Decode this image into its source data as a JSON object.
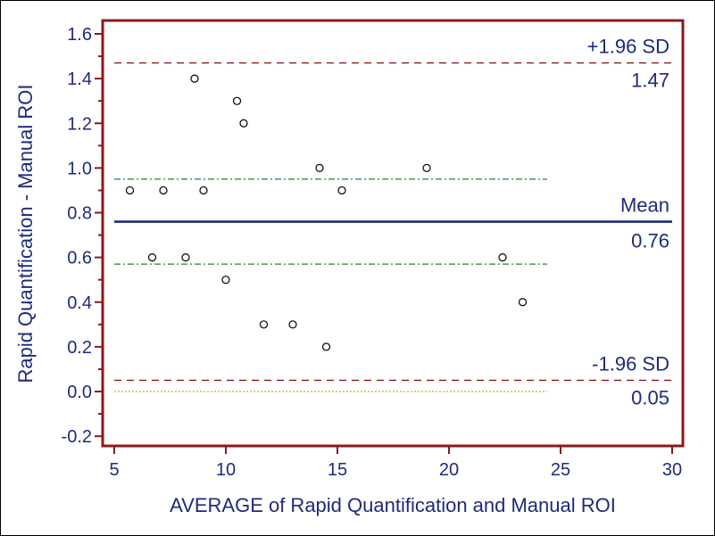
{
  "chart_data": {
    "type": "scatter",
    "subtype": "bland-altman",
    "xlabel": "AVERAGE of Rapid Quantification and Manual ROI",
    "ylabel": "Rapid Quantification - Manual ROI",
    "xlim": [
      5,
      30
    ],
    "ylim": [
      -0.25,
      1.65
    ],
    "x_ticks": [
      5,
      10,
      15,
      20,
      25,
      30
    ],
    "x_tick_labels": [
      "5",
      "10",
      "15",
      "20",
      "25",
      "30"
    ],
    "y_ticks": [
      -0.2,
      0.0,
      0.2,
      0.4,
      0.6,
      0.8,
      1.0,
      1.2,
      1.4,
      1.6
    ],
    "y_tick_labels": [
      "-0.2",
      "0.0",
      "0.2",
      "0.4",
      "0.6",
      "0.8",
      "1.0",
      "1.2",
      "1.4",
      "1.6"
    ],
    "points": [
      {
        "x": 5.7,
        "y": 0.9
      },
      {
        "x": 6.7,
        "y": 0.6
      },
      {
        "x": 7.2,
        "y": 0.9
      },
      {
        "x": 8.2,
        "y": 0.6
      },
      {
        "x": 8.6,
        "y": 1.4
      },
      {
        "x": 9.0,
        "y": 0.9
      },
      {
        "x": 10.0,
        "y": 0.5
      },
      {
        "x": 10.5,
        "y": 1.3
      },
      {
        "x": 10.8,
        "y": 1.2
      },
      {
        "x": 11.7,
        "y": 0.3
      },
      {
        "x": 13.0,
        "y": 0.3
      },
      {
        "x": 14.2,
        "y": 1.0
      },
      {
        "x": 14.5,
        "y": 0.2
      },
      {
        "x": 15.2,
        "y": 0.9
      },
      {
        "x": 19.0,
        "y": 1.0
      },
      {
        "x": 22.4,
        "y": 0.6
      },
      {
        "x": 23.3,
        "y": 0.4
      }
    ],
    "reference_lines": {
      "upper_loa": {
        "value": 1.47,
        "label": "+1.96 SD",
        "value_label": "1.47",
        "color": "#8b1a1a",
        "style": "dashed"
      },
      "mean": {
        "value": 0.76,
        "label": "Mean",
        "value_label": "0.76",
        "color": "#1f2a7a",
        "style": "solid"
      },
      "lower_loa": {
        "value": 0.05,
        "label": "-1.96 SD",
        "value_label": "0.05",
        "color": "#8b1a1a",
        "style": "dashed"
      },
      "mean_ci_upper": {
        "value": 0.95,
        "color": "#2e7d32",
        "style": "dash-dot"
      },
      "mean_ci_lower": {
        "value": 0.57,
        "color": "#2e7d32",
        "style": "dash-dot"
      },
      "zero": {
        "value": 0.0,
        "color": "#c8862a",
        "style": "dotted"
      }
    },
    "colors": {
      "frame": "#8b1a1a",
      "text": "#1f2a7a",
      "points": "#000000"
    }
  }
}
